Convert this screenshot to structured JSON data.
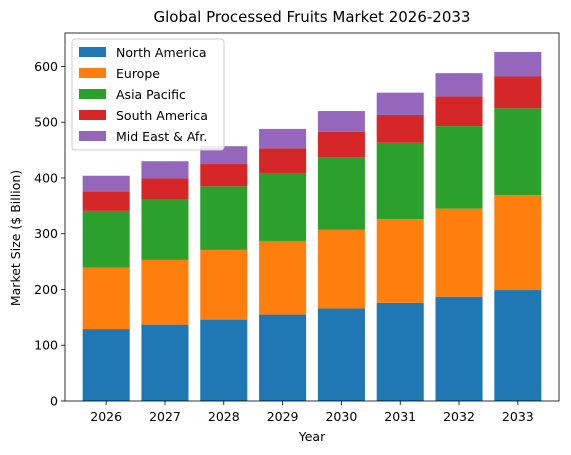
{
  "chart_data": {
    "type": "bar",
    "stacked": true,
    "title": "Global Processed Fruits Market 2026-2033",
    "xlabel": "Year",
    "ylabel": "Market Size ($ Billion)",
    "categories": [
      "2026",
      "2027",
      "2028",
      "2029",
      "2030",
      "2031",
      "2032",
      "2033"
    ],
    "ylim": [
      0,
      660
    ],
    "yticks": [
      0,
      100,
      200,
      300,
      400,
      500,
      600
    ],
    "grid": false,
    "legend_position": "top-left",
    "series": [
      {
        "name": "North America",
        "color": "#1f77b4",
        "values": [
          129,
          137,
          146,
          155,
          166,
          176,
          187,
          199
        ]
      },
      {
        "name": "Europe",
        "color": "#ff7f0e",
        "values": [
          110,
          116,
          125,
          132,
          141,
          150,
          158,
          170
        ]
      },
      {
        "name": "Asia Pacific",
        "color": "#2ca02c",
        "values": [
          102,
          108,
          114,
          122,
          130,
          137,
          148,
          156
        ]
      },
      {
        "name": "South America",
        "color": "#d62728",
        "values": [
          35,
          38,
          40,
          44,
          46,
          50,
          53,
          57
        ]
      },
      {
        "name": "Mid East & Afr.",
        "color": "#9467bd",
        "values": [
          28,
          31,
          32,
          35,
          37,
          40,
          42,
          44
        ]
      }
    ]
  }
}
